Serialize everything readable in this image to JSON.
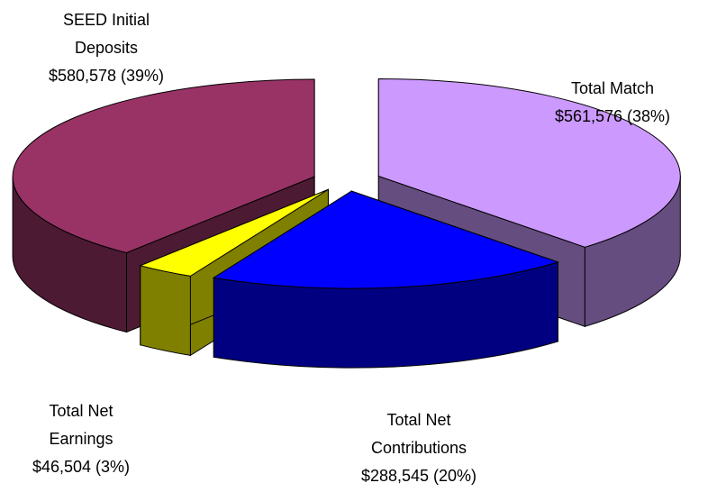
{
  "chart_data": {
    "type": "pie",
    "categories": [
      "Total Match",
      "Total Net Contributions",
      "Total Net Earnings",
      "SEED Initial Deposits"
    ],
    "values": [
      561576,
      288545,
      46504,
      580578
    ],
    "value_labels": [
      "$561,576 (38%)",
      "$288,545 (20%)",
      "$46,504 (3%)",
      "$580,578 (39%)"
    ],
    "colors": [
      "#cc99ff",
      "#0000ff",
      "#ffff00",
      "#993366"
    ],
    "three_d": true,
    "exploded": true
  }
}
